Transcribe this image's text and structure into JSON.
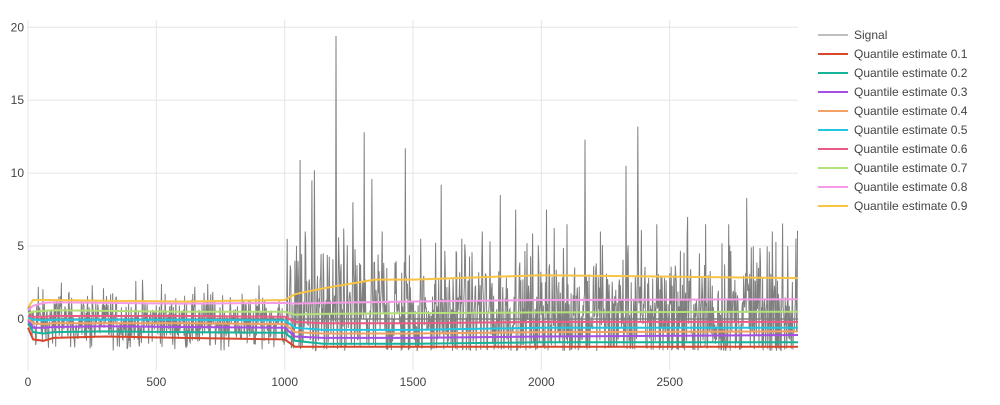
{
  "chart_data": {
    "type": "line",
    "title": "",
    "xlabel": "",
    "ylabel": "",
    "xlim": [
      0,
      3000
    ],
    "ylim": [
      -3.5,
      20.5
    ],
    "x_ticks": [
      0,
      500,
      1000,
      1500,
      2000,
      2500
    ],
    "y_ticks": [
      0,
      5,
      10,
      15,
      20
    ],
    "grid": true,
    "legend_placement": "top-right (outside plot)",
    "series": [
      {
        "name": "Signal",
        "color": "#7f7f7f",
        "segments": [
          {
            "x_start": 0,
            "x_end": 1020,
            "center": -0.2,
            "spread": 1.3
          },
          {
            "x_start": 1020,
            "x_end": 3000,
            "center": 0.3,
            "spread": 3.0
          }
        ],
        "spikes": [
          {
            "x": 40,
            "y": 2.2
          },
          {
            "x": 130,
            "y": 2.5
          },
          {
            "x": 250,
            "y": 2.3
          },
          {
            "x": 420,
            "y": 2.6
          },
          {
            "x": 520,
            "y": 2.4
          },
          {
            "x": 700,
            "y": 2.4
          },
          {
            "x": 900,
            "y": 2.3
          },
          {
            "x": 1010,
            "y": 5.5
          },
          {
            "x": 1060,
            "y": 10.9
          },
          {
            "x": 1080,
            "y": 6.0
          },
          {
            "x": 1105,
            "y": 9.5
          },
          {
            "x": 1115,
            "y": 10.2
          },
          {
            "x": 1150,
            "y": 4.5
          },
          {
            "x": 1200,
            "y": 19.4
          },
          {
            "x": 1230,
            "y": 6.2
          },
          {
            "x": 1265,
            "y": 8.0
          },
          {
            "x": 1310,
            "y": 12.8
          },
          {
            "x": 1340,
            "y": 9.6
          },
          {
            "x": 1380,
            "y": 6.0
          },
          {
            "x": 1470,
            "y": 11.7
          },
          {
            "x": 1530,
            "y": 5.5
          },
          {
            "x": 1610,
            "y": 9.2
          },
          {
            "x": 1690,
            "y": 5.5
          },
          {
            "x": 1770,
            "y": 6.0
          },
          {
            "x": 1840,
            "y": 8.5
          },
          {
            "x": 1900,
            "y": 7.5
          },
          {
            "x": 2020,
            "y": 7.5
          },
          {
            "x": 2100,
            "y": 6.5
          },
          {
            "x": 2170,
            "y": 12.3
          },
          {
            "x": 2230,
            "y": 6.0
          },
          {
            "x": 2330,
            "y": 10.5
          },
          {
            "x": 2375,
            "y": 13.2
          },
          {
            "x": 2450,
            "y": 6.5
          },
          {
            "x": 2570,
            "y": 7.0
          },
          {
            "x": 2640,
            "y": 6.5
          },
          {
            "x": 2730,
            "y": 6.5
          },
          {
            "x": 2800,
            "y": 8.3
          },
          {
            "x": 2900,
            "y": 6.0
          },
          {
            "x": 2960,
            "y": 5.0
          }
        ]
      },
      {
        "name": "Quantile estimate 0.1",
        "color": "#d9472b",
        "x": [
          0,
          20,
          60,
          100,
          300,
          600,
          1000,
          1040,
          1150,
          1500,
          2000,
          3000
        ],
        "y": [
          -0.6,
          -1.4,
          -1.5,
          -1.3,
          -1.2,
          -1.3,
          -1.4,
          -1.9,
          -1.9,
          -1.9,
          -1.9,
          -1.9
        ]
      },
      {
        "name": "Quantile estimate 0.2",
        "color": "#16b39a",
        "x": [
          0,
          20,
          60,
          100,
          300,
          600,
          1000,
          1040,
          1150,
          1500,
          2000,
          3000
        ],
        "y": [
          -0.3,
          -0.9,
          -1.0,
          -0.9,
          -0.85,
          -0.9,
          -0.95,
          -1.5,
          -1.7,
          -1.7,
          -1.6,
          -1.6
        ]
      },
      {
        "name": "Quantile estimate 0.3",
        "color": "#a64ee8",
        "x": [
          0,
          20,
          60,
          100,
          300,
          600,
          1000,
          1040,
          1150,
          1500,
          2000,
          3000
        ],
        "y": [
          -0.1,
          -0.6,
          -0.6,
          -0.55,
          -0.5,
          -0.55,
          -0.6,
          -1.2,
          -1.3,
          -1.3,
          -1.2,
          -1.1
        ]
      },
      {
        "name": "Quantile estimate 0.4",
        "color": "#f2a066",
        "x": [
          0,
          20,
          60,
          100,
          300,
          600,
          1000,
          1040,
          1150,
          1500,
          2000,
          3000
        ],
        "y": [
          0.0,
          -0.3,
          -0.35,
          -0.3,
          -0.3,
          -0.3,
          -0.35,
          -0.9,
          -1.0,
          -1.0,
          -0.9,
          -0.85
        ]
      },
      {
        "name": "Quantile estimate 0.5",
        "color": "#22c6e0",
        "x": [
          0,
          20,
          60,
          100,
          300,
          600,
          1000,
          1040,
          1150,
          1500,
          2000,
          3000
        ],
        "y": [
          0.1,
          -0.05,
          -0.1,
          -0.05,
          -0.05,
          -0.05,
          -0.1,
          -0.6,
          -0.75,
          -0.75,
          -0.6,
          -0.6
        ]
      },
      {
        "name": "Quantile estimate 0.6",
        "color": "#ec5b85",
        "x": [
          0,
          20,
          60,
          100,
          300,
          600,
          1000,
          1040,
          1150,
          1500,
          2000,
          3000
        ],
        "y": [
          0.2,
          0.15,
          0.15,
          0.2,
          0.2,
          0.2,
          0.15,
          -0.2,
          -0.3,
          -0.3,
          -0.2,
          -0.2
        ]
      },
      {
        "name": "Quantile estimate 0.7",
        "color": "#b4e07a",
        "x": [
          0,
          20,
          60,
          100,
          300,
          600,
          1000,
          1040,
          1150,
          1500,
          2000,
          3000
        ],
        "y": [
          0.4,
          0.5,
          0.55,
          0.6,
          0.55,
          0.5,
          0.5,
          0.3,
          0.35,
          0.4,
          0.45,
          0.5
        ]
      },
      {
        "name": "Quantile estimate 0.8",
        "color": "#f59ae6",
        "x": [
          0,
          20,
          60,
          100,
          300,
          600,
          1000,
          1040,
          1150,
          1500,
          2000,
          3000
        ],
        "y": [
          0.6,
          0.9,
          1.1,
          1.15,
          1.1,
          1.05,
          1.1,
          1.05,
          1.1,
          1.2,
          1.3,
          1.35
        ]
      },
      {
        "name": "Quantile estimate 0.9",
        "color": "#f9c344",
        "x": [
          0,
          20,
          60,
          100,
          300,
          600,
          1000,
          1040,
          1150,
          1350,
          1500,
          2000,
          3000
        ],
        "y": [
          0.8,
          1.3,
          1.3,
          1.3,
          1.25,
          1.2,
          1.3,
          1.7,
          2.1,
          2.7,
          2.7,
          3.0,
          2.8
        ]
      }
    ]
  }
}
